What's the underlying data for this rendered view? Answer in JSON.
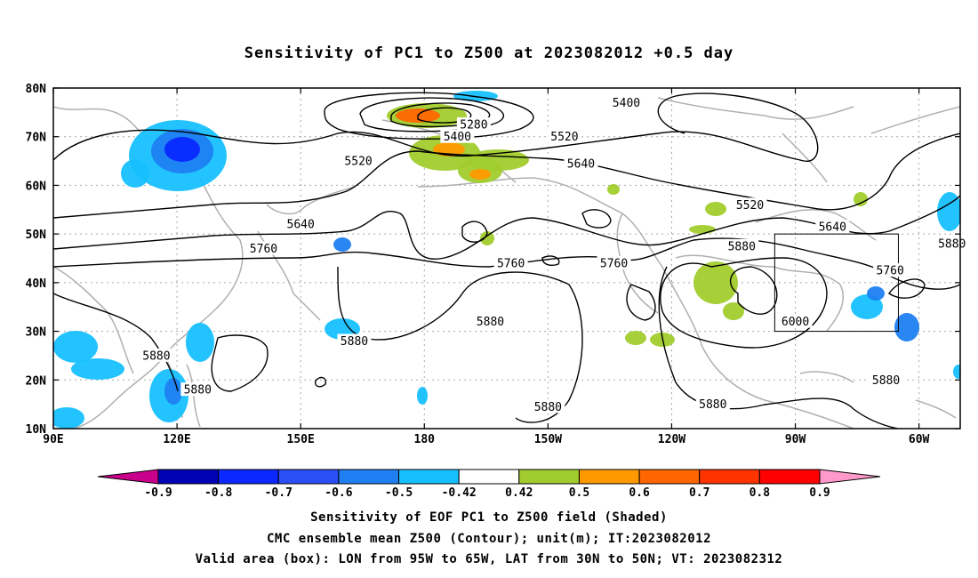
{
  "title": "Sensitivity of PC1 to Z500 at 2023082012 +0.5 day",
  "lat_ticks": [
    "80N",
    "70N",
    "60N",
    "50N",
    "40N",
    "30N",
    "20N",
    "10N"
  ],
  "lon_ticks": [
    "90E",
    "120E",
    "150E",
    "180",
    "150W",
    "120W",
    "90W",
    "60W"
  ],
  "contour_labels": [
    {
      "text": "5400",
      "lon": -131,
      "lat": 77
    },
    {
      "text": "5280",
      "lon": -168,
      "lat": 72.5
    },
    {
      "text": "5400",
      "lon": -172,
      "lat": 70
    },
    {
      "text": "5520",
      "lon": -146,
      "lat": 70
    },
    {
      "text": "5520",
      "lon": 164,
      "lat": 65
    },
    {
      "text": "5640",
      "lon": -142,
      "lat": 64.5
    },
    {
      "text": "5520",
      "lon": -101,
      "lat": 56
    },
    {
      "text": "5640",
      "lon": 150,
      "lat": 52
    },
    {
      "text": "5640",
      "lon": -81,
      "lat": 51.5
    },
    {
      "text": "5760",
      "lon": 141,
      "lat": 47
    },
    {
      "text": "5880",
      "lon": -52,
      "lat": 48
    },
    {
      "text": "5880",
      "lon": -103,
      "lat": 47.5
    },
    {
      "text": "5760",
      "lon": -159,
      "lat": 44
    },
    {
      "text": "5760",
      "lon": -134,
      "lat": 44
    },
    {
      "text": "5760",
      "lon": -67,
      "lat": 42.5
    },
    {
      "text": "5880",
      "lon": -164,
      "lat": 32
    },
    {
      "text": "6000",
      "lon": -90,
      "lat": 32
    },
    {
      "text": "5880",
      "lon": 163,
      "lat": 28
    },
    {
      "text": "5880",
      "lon": 115,
      "lat": 25
    },
    {
      "text": "5880",
      "lon": 125,
      "lat": 18
    },
    {
      "text": "5880",
      "lon": -150,
      "lat": 14.5
    },
    {
      "text": "5880",
      "lon": -110,
      "lat": 15
    },
    {
      "text": "5880",
      "lon": -68,
      "lat": 20
    }
  ],
  "colorbar": {
    "labels": [
      "-0.9",
      "-0.8",
      "-0.7",
      "-0.6",
      "-0.5",
      "-0.42",
      "0.42",
      "0.5",
      "0.6",
      "0.7",
      "0.8",
      "0.9"
    ],
    "colors": [
      "#0000b4",
      "#0a28ff",
      "#2b4ff6",
      "#1f7ff2",
      "#16c0ff",
      "#ffffff",
      "#a1cc2d",
      "#ff9900",
      "#ff6600",
      "#ff3300",
      "#ff0000"
    ],
    "low_color": "#c8008c",
    "high_color": "#ff99cc"
  },
  "valid_box": {
    "lon_min": -95,
    "lon_max": -65,
    "lat_min": 30,
    "lat_max": 50
  },
  "footer": {
    "line1": "Sensitivity of EOF PC1 to Z500 field (Shaded)",
    "line2": "CMC ensemble mean Z500 (Contour); unit(m); IT:2023082012",
    "line3": "Valid area (box): LON from 95W to 65W, LAT from 30N to 50N; VT: 2023082312"
  }
}
